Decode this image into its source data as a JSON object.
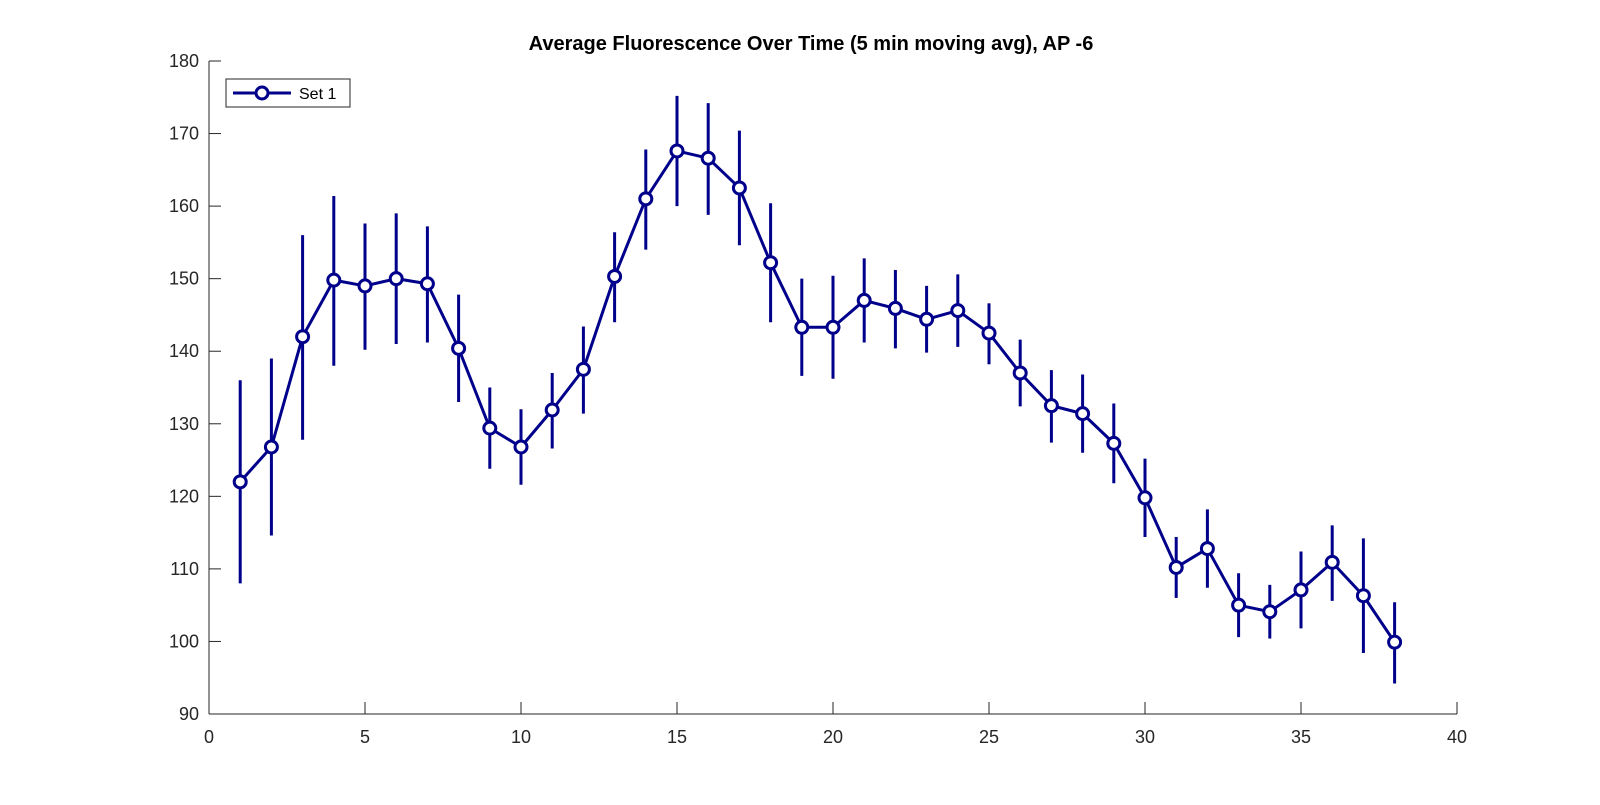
{
  "chart_data": {
    "type": "line",
    "title": "Average Fluorescence Over Time (5 min moving avg), AP -6",
    "xlabel": "",
    "ylabel": "",
    "xlim": [
      0,
      40
    ],
    "ylim": [
      90,
      180
    ],
    "xticks": [
      0,
      5,
      10,
      15,
      20,
      25,
      30,
      35,
      40
    ],
    "yticks": [
      90,
      100,
      110,
      120,
      130,
      140,
      150,
      160,
      170,
      180
    ],
    "grid": false,
    "legend_position": "top-left",
    "color": "#00008B",
    "series": [
      {
        "name": "Set 1",
        "marker": "circle",
        "x": [
          1,
          2,
          3,
          4,
          5,
          6,
          7,
          8,
          9,
          10,
          11,
          12,
          13,
          14,
          15,
          16,
          17,
          18,
          19,
          20,
          21,
          22,
          23,
          24,
          25,
          26,
          27,
          28,
          29,
          30,
          31,
          32,
          33,
          34,
          35,
          36,
          37,
          38
        ],
        "y": [
          122,
          126.8,
          142,
          149.8,
          149,
          150,
          149.3,
          140.4,
          129.4,
          126.8,
          131.9,
          137.5,
          150.3,
          161,
          167.6,
          166.6,
          162.5,
          152.2,
          143.3,
          143.3,
          147,
          145.9,
          144.4,
          145.6,
          142.5,
          137,
          132.5,
          131.4,
          127.3,
          119.8,
          110.2,
          112.8,
          105,
          104.1,
          107.1,
          110.9,
          106.3,
          99.9
        ],
        "err_low": [
          108,
          114.6,
          127.8,
          138,
          140.2,
          141,
          141.2,
          133,
          123.8,
          121.6,
          126.6,
          131.4,
          144,
          154,
          160,
          158.8,
          154.6,
          144,
          136.6,
          136.2,
          141.2,
          140.4,
          139.8,
          140.6,
          138.2,
          132.4,
          127.4,
          126,
          121.8,
          114.4,
          106,
          107.4,
          100.6,
          100.4,
          101.8,
          105.6,
          98.4,
          94.2
        ],
        "err_high": [
          136,
          139,
          156,
          161.4,
          157.6,
          159,
          157.2,
          147.8,
          135,
          132,
          137,
          143.4,
          156.4,
          167.8,
          175.2,
          174.2,
          170.4,
          160.4,
          150,
          150.4,
          152.8,
          151.2,
          149,
          150.6,
          146.6,
          141.6,
          137.4,
          136.8,
          132.8,
          125.2,
          114.4,
          118.2,
          109.4,
          107.8,
          112.4,
          116,
          114.2,
          105.4
        ]
      }
    ]
  }
}
